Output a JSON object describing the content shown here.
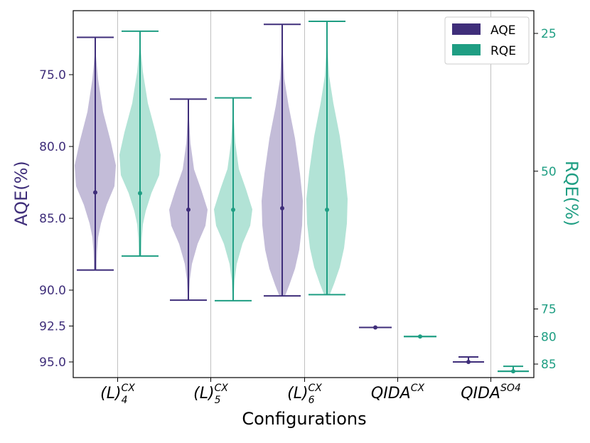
{
  "chart_data": {
    "type": "violin",
    "xlabel": "Configurations",
    "ylabel_left": "AQE(%)",
    "ylabel_right": "RQE(%)",
    "colors": {
      "aqe": "#3f2e7a",
      "rqe": "#1f9e83",
      "aqe_fill": "#c3bcd8",
      "rqe_fill": "#b2e3d6",
      "grid": "#c0c0c0"
    },
    "categories": [
      {
        "base": "(L)",
        "sub": "4",
        "sup": "CX"
      },
      {
        "base": "(L)",
        "sub": "5",
        "sup": "CX"
      },
      {
        "base": "(L)",
        "sub": "6",
        "sup": "CX"
      },
      {
        "base": "QIDA",
        "sub": "",
        "sup": "CX"
      },
      {
        "base": "QIDA",
        "sub": "",
        "sup": "SO4"
      }
    ],
    "left_axis": {
      "ticks": [
        "75.0",
        "80.0",
        "85.0",
        "90.0",
        "92.5",
        "95.0"
      ]
    },
    "right_axis": {
      "ticks": [
        "25",
        "50",
        "75",
        "80",
        "85"
      ]
    },
    "legend": {
      "position": "top-right",
      "entries": [
        "AQE",
        "RQE"
      ]
    },
    "series": [
      {
        "name": "AQE",
        "stats": [
          {
            "min": 72.4,
            "max": 88.6,
            "median": 83.2
          },
          {
            "min": 76.7,
            "max": 90.7,
            "median": 84.4
          },
          {
            "min": 71.5,
            "max": 90.4,
            "median": 84.3
          },
          {
            "min": 92.6,
            "max": 92.6,
            "median": 92.6
          },
          {
            "min": 95.0,
            "max": 95.0,
            "median": 95.0
          }
        ]
      },
      {
        "name": "RQE",
        "stats": [
          {
            "min": 24.6,
            "max": 65.4,
            "median": 54.0
          },
          {
            "min": 36.7,
            "max": 73.5,
            "median": 57.0
          },
          {
            "min": 22.8,
            "max": 72.4,
            "median": 57.0
          },
          {
            "min": 80.0,
            "max": 80.0,
            "median": 80.0
          },
          {
            "min": 86.3,
            "max": 86.3,
            "median": 86.3
          }
        ]
      }
    ]
  }
}
